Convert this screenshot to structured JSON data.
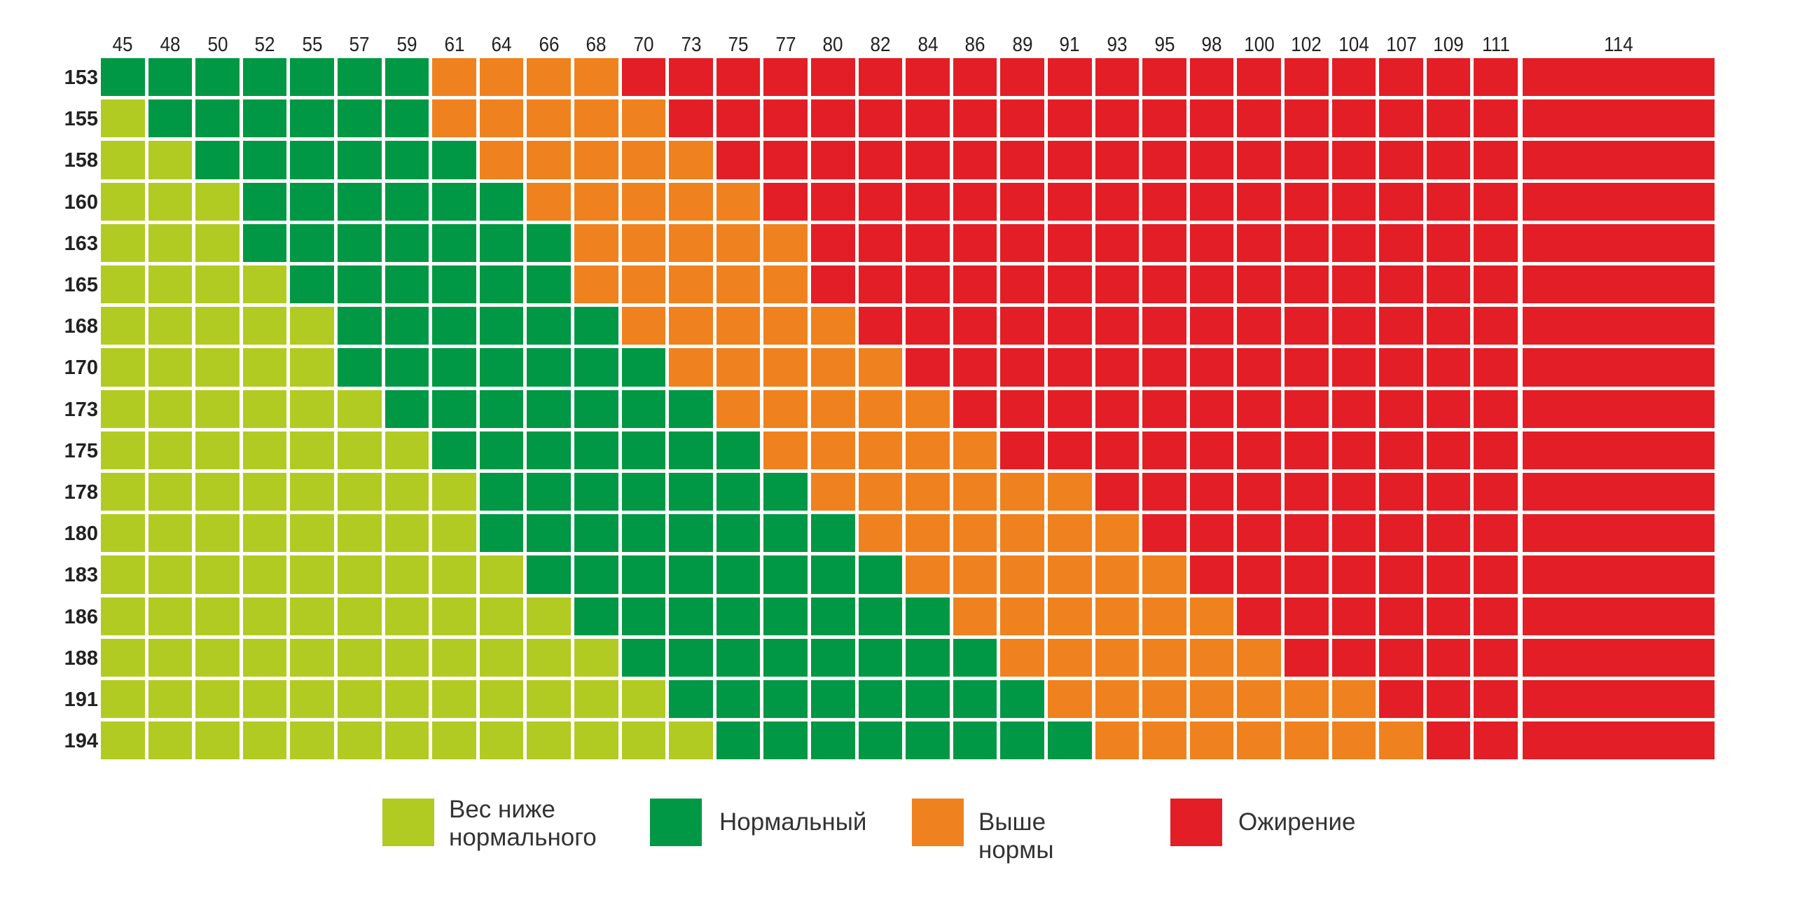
{
  "chart_data": {
    "type": "heatmap",
    "title": "",
    "xlabel": "",
    "ylabel": "",
    "x_ticks": [
      "45",
      "48",
      "50",
      "52",
      "55",
      "57",
      "59",
      "61",
      "64",
      "66",
      "68",
      "70",
      "73",
      "75",
      "77",
      "80",
      "82",
      "84",
      "86",
      "89",
      "91",
      "93",
      "95",
      "98",
      "100",
      "102",
      "104",
      "107",
      "109",
      "111",
      "114"
    ],
    "categories": [
      {
        "key": "underweight",
        "label": "Вес ниже нормального",
        "color": "#b2cb22"
      },
      {
        "key": "normal",
        "label": "Нормальный",
        "color": "#009844"
      },
      {
        "key": "overweight",
        "label": "Выше нормы",
        "color": "#ef821e"
      },
      {
        "key": "obese",
        "label": "Ожирение",
        "color": "#e31e26"
      }
    ],
    "rows": [
      {
        "label": "153",
        "counts": [
          0,
          7,
          4,
          20
        ]
      },
      {
        "label": "155",
        "counts": [
          1,
          6,
          5,
          19
        ]
      },
      {
        "label": "158",
        "counts": [
          2,
          6,
          5,
          18
        ]
      },
      {
        "label": "160",
        "counts": [
          3,
          6,
          5,
          17
        ]
      },
      {
        "label": "163",
        "counts": [
          3,
          7,
          5,
          16
        ]
      },
      {
        "label": "165",
        "counts": [
          4,
          6,
          5,
          16
        ]
      },
      {
        "label": "168",
        "counts": [
          5,
          6,
          5,
          15
        ]
      },
      {
        "label": "170",
        "counts": [
          5,
          7,
          5,
          14
        ]
      },
      {
        "label": "173",
        "counts": [
          6,
          7,
          5,
          13
        ]
      },
      {
        "label": "175",
        "counts": [
          7,
          7,
          5,
          12
        ]
      },
      {
        "label": "178",
        "counts": [
          8,
          7,
          6,
          10
        ]
      },
      {
        "label": "180",
        "counts": [
          8,
          8,
          6,
          9
        ]
      },
      {
        "label": "183",
        "counts": [
          9,
          8,
          6,
          8
        ]
      },
      {
        "label": "186",
        "counts": [
          10,
          8,
          6,
          7
        ]
      },
      {
        "label": "188",
        "counts": [
          11,
          8,
          6,
          6
        ]
      },
      {
        "label": "191",
        "counts": [
          12,
          8,
          7,
          4
        ]
      },
      {
        "label": "194",
        "counts": [
          13,
          8,
          7,
          3
        ]
      }
    ],
    "legend_position": "bottom",
    "grid": false
  },
  "legend": {
    "underweight": "Вес ниже\nнормального",
    "normal": "Нормальный",
    "overweight": "Выше нормы",
    "obese": "Ожирение"
  }
}
